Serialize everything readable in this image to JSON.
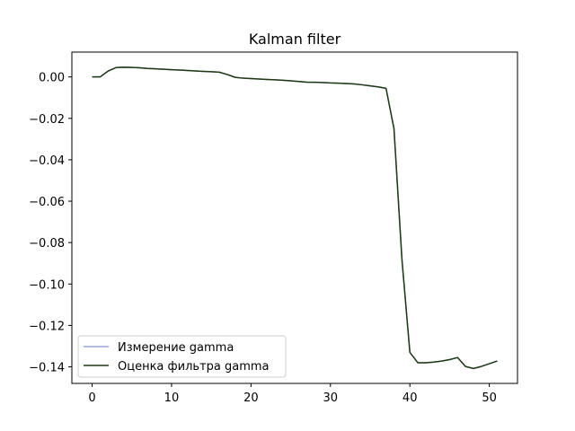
{
  "chart_data": {
    "type": "line",
    "title": "Kalman filter",
    "xlabel": "",
    "ylabel": "",
    "xlim": [
      -2.55,
      53.55
    ],
    "ylim": [
      -0.148,
      0.012
    ],
    "xticks": [
      0,
      10,
      20,
      30,
      40,
      50
    ],
    "xtick_labels": [
      "0",
      "10",
      "20",
      "30",
      "40",
      "50"
    ],
    "yticks": [
      0.0,
      -0.02,
      -0.04,
      -0.06,
      -0.08,
      -0.1,
      -0.12,
      -0.14
    ],
    "ytick_labels": [
      "0.00",
      "−0.02",
      "−0.04",
      "−0.06",
      "−0.08",
      "−0.10",
      "−0.12",
      "−0.14"
    ],
    "grid": false,
    "legend_position": "lower-left",
    "x": [
      0,
      1,
      2,
      3,
      4,
      5,
      6,
      7,
      8,
      9,
      10,
      11,
      12,
      13,
      14,
      15,
      16,
      17,
      18,
      19,
      20,
      21,
      22,
      23,
      24,
      25,
      26,
      27,
      28,
      29,
      30,
      31,
      32,
      33,
      34,
      35,
      36,
      37,
      38,
      39,
      40,
      41,
      42,
      43,
      44,
      45,
      46,
      47,
      48,
      49,
      50,
      51
    ],
    "series": [
      {
        "name": "Измерение gamma",
        "color": "#92a8d8",
        "values": [
          0.0,
          0.0,
          0.0028,
          0.0045,
          0.0047,
          0.0046,
          0.0044,
          0.0041,
          0.0039,
          0.0037,
          0.0035,
          0.0033,
          0.0031,
          0.0029,
          0.0027,
          0.0025,
          0.0023,
          0.0012,
          -0.0002,
          -0.0006,
          -0.0008,
          -0.001,
          -0.0012,
          -0.0014,
          -0.0016,
          -0.0019,
          -0.0022,
          -0.0025,
          -0.0026,
          -0.0027,
          -0.0029,
          -0.003,
          -0.0032,
          -0.0034,
          -0.0038,
          -0.0043,
          -0.0048,
          -0.0055,
          -0.025,
          -0.088,
          -0.133,
          -0.138,
          -0.138,
          -0.1377,
          -0.1372,
          -0.1365,
          -0.1355,
          -0.1398,
          -0.1408,
          -0.1398,
          -0.1385,
          -0.1372
        ]
      },
      {
        "name": "Оценка фильтра gamma",
        "color": "#1f3a12",
        "values": [
          0.0,
          0.0,
          0.0028,
          0.0045,
          0.0047,
          0.0046,
          0.0044,
          0.0041,
          0.0039,
          0.0037,
          0.0035,
          0.0033,
          0.0031,
          0.0029,
          0.0027,
          0.0025,
          0.0023,
          0.0012,
          -0.0002,
          -0.0006,
          -0.0008,
          -0.001,
          -0.0012,
          -0.0014,
          -0.0016,
          -0.0019,
          -0.0022,
          -0.0025,
          -0.0026,
          -0.0027,
          -0.0029,
          -0.003,
          -0.0032,
          -0.0034,
          -0.0038,
          -0.0043,
          -0.0048,
          -0.0055,
          -0.025,
          -0.088,
          -0.133,
          -0.138,
          -0.138,
          -0.1377,
          -0.1372,
          -0.1365,
          -0.1355,
          -0.1398,
          -0.1408,
          -0.1398,
          -0.1385,
          -0.1372
        ]
      }
    ]
  }
}
